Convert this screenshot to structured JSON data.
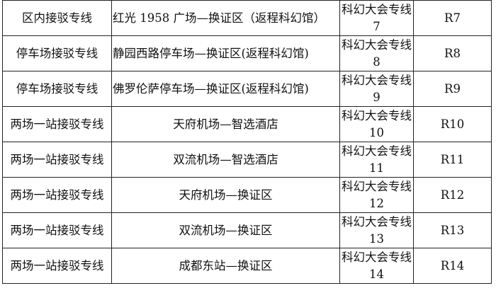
{
  "rows": [
    {
      "type": "区内接驳专线",
      "route": "红光 1958 广场—换证区（返程科幻馆）",
      "line": "科幻大会专线 7",
      "code": "R7",
      "align": "left"
    },
    {
      "type": "停车场接驳专线",
      "route": "静园西路停车场—换证区(返程科幻馆)",
      "line": "科幻大会专线 8",
      "code": "R8",
      "align": "left"
    },
    {
      "type": "停车场接驳专线",
      "route": "佛罗伦萨停车场—换证区(返程科幻馆)",
      "line": "科幻大会专线 9",
      "code": "R9",
      "align": "left"
    },
    {
      "type": "两场一站接驳专线",
      "route": "天府机场—智选酒店",
      "line": "科幻大会专线 10",
      "code": "R10",
      "align": "center"
    },
    {
      "type": "两场一站接驳专线",
      "route": "双流机场—智选酒店",
      "line": "科幻大会专线 11",
      "code": "R11",
      "align": "center"
    },
    {
      "type": "两场一站接驳专线",
      "route": "天府机场—换证区",
      "line": "科幻大会专线 12",
      "code": "R12",
      "align": "center"
    },
    {
      "type": "两场一站接驳专线",
      "route": "双流机场—换证区",
      "line": "科幻大会专线 13",
      "code": "R13",
      "align": "center"
    },
    {
      "type": "两场一站接驳专线",
      "route": "成都东站—换证区",
      "line": "科幻大会专线 14",
      "code": "R14",
      "align": "center"
    }
  ]
}
